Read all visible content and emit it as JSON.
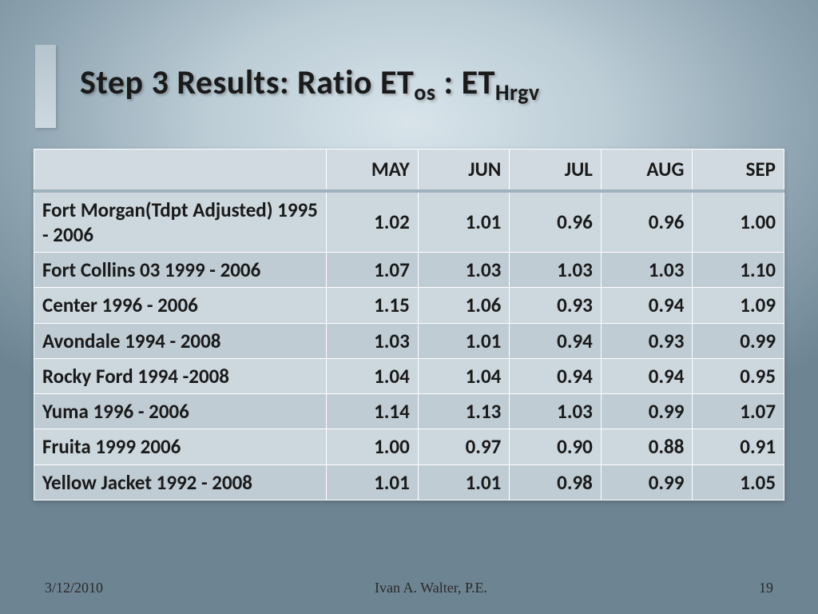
{
  "title": {
    "prefix": "Step 3 Results:  Ratio  ET",
    "sub1": "os",
    "mid": " :  ET",
    "sub2": "Hrgv"
  },
  "table": {
    "columns": [
      "",
      "MAY",
      "JUN",
      "JUL",
      "AUG",
      "SEP"
    ],
    "rows": [
      {
        "label": "Fort Morgan(Tdpt Adjusted) 1995 - 2006",
        "values": [
          "1.02",
          "1.01",
          "0.96",
          "0.96",
          "1.00"
        ]
      },
      {
        "label": "Fort Collins 03  1999 - 2006",
        "values": [
          "1.07",
          "1.03",
          "1.03",
          "1.03",
          "1.10"
        ]
      },
      {
        "label": "Center  1996 - 2006",
        "values": [
          "1.15",
          "1.06",
          "0.93",
          "0.94",
          "1.09"
        ]
      },
      {
        "label": "Avondale 1994 - 2008",
        "values": [
          "1.03",
          "1.01",
          "0.94",
          "0.93",
          "0.99"
        ]
      },
      {
        "label": "Rocky Ford 1994 -2008",
        "values": [
          "1.04",
          "1.04",
          "0.94",
          "0.94",
          "0.95"
        ]
      },
      {
        "label": "Yuma  1996  -  2006",
        "values": [
          "1.14",
          "1.13",
          "1.03",
          "0.99",
          "1.07"
        ]
      },
      {
        "label": "Fruita  1999 2006",
        "values": [
          "1.00",
          "0.97",
          "0.90",
          "0.88",
          "0.91"
        ]
      },
      {
        "label": "Yellow Jacket  1992 - 2008",
        "values": [
          "1.01",
          "1.01",
          "0.98",
          "0.99",
          "1.05"
        ]
      }
    ],
    "header_bg": "#d0dae0",
    "row_bg_odd": "#ccd7de",
    "row_bg_even": "#bfccd4",
    "border_color": "#ffffff",
    "header_underline": "#a0b2bd",
    "font_size": 25
  },
  "footer": {
    "date": "3/12/2010",
    "author": "Ivan A. Walter, P.E.",
    "page": "19"
  },
  "background": {
    "gradient_center": "#d8e4ea",
    "gradient_edge": "#6d8492"
  }
}
